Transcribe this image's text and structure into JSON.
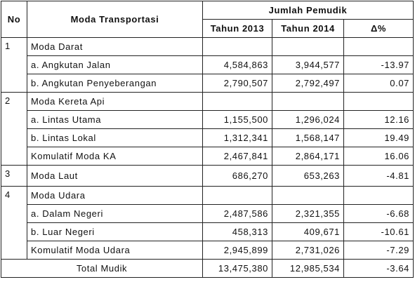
{
  "header": {
    "no": "No",
    "moda": "Moda Transportasi",
    "jumlah": "Jumlah Pemudik",
    "years": [
      "Tahun 2013",
      "Tahun 2014"
    ],
    "delta": "Δ%"
  },
  "rows": [
    {
      "no": "1",
      "label": "Moda Darat"
    },
    {
      "label": "a. Angkutan Jalan",
      "values": [
        "4,584,863",
        "3,944,577",
        "-13.97"
      ]
    },
    {
      "label": "b. Angkutan Penyeberangan",
      "values": [
        "2,790,507",
        "2,792,497",
        "0.07"
      ]
    },
    {
      "no": "2",
      "label": "Moda Kereta Api"
    },
    {
      "label": "a. Lintas Utama",
      "values": [
        "1,155,500",
        "1,296,024",
        "12.16"
      ]
    },
    {
      "label": "b. Lintas Lokal",
      "values": [
        "1,312,341",
        "1,568,147",
        "19.49"
      ]
    },
    {
      "label": "Komulatif Moda KA",
      "values": [
        "2,467,841",
        "2,864,171",
        "16.06"
      ]
    },
    {
      "no": "3",
      "label": "Moda Laut",
      "values": [
        "686,270",
        "653,263",
        "-4.81"
      ]
    },
    {
      "no": "4",
      "label": "Moda Udara"
    },
    {
      "label": "a. Dalam Negeri",
      "values": [
        "2,487,586",
        "2,321,355",
        "-6.68"
      ]
    },
    {
      "label": "b. Luar Negeri",
      "values": [
        "458,313",
        "409,671",
        "-10.61"
      ]
    },
    {
      "label": "Komulatif Moda Udara",
      "values": [
        "2,945,899",
        "2,731,026",
        "-7.29"
      ]
    }
  ],
  "total": {
    "label": "Total Mudik",
    "values": [
      "13,475,380",
      "12,985,534",
      "-3.64"
    ]
  }
}
